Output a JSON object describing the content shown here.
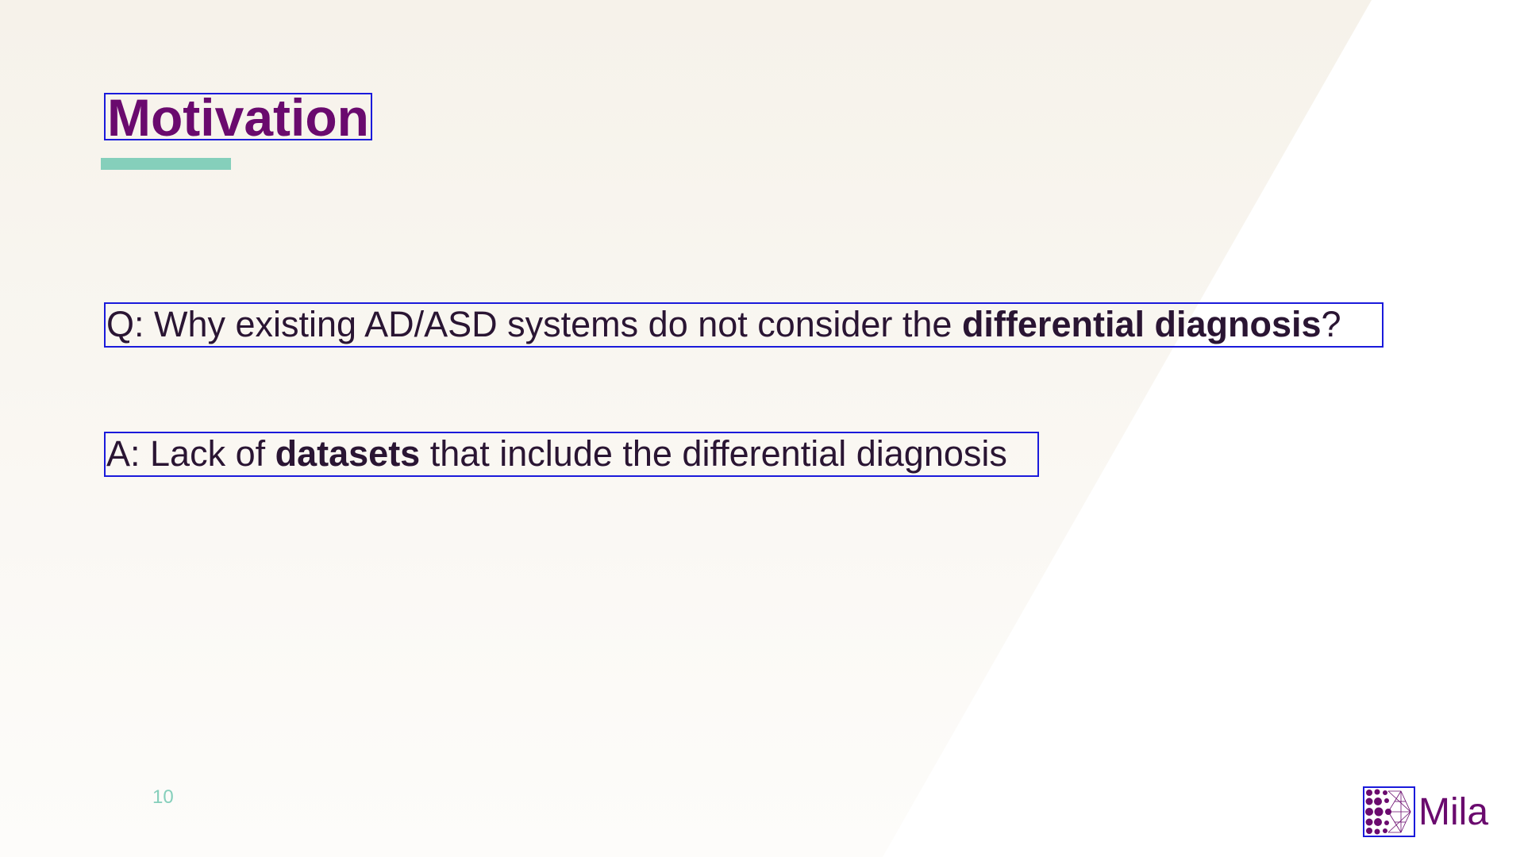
{
  "slide": {
    "title": "Motivation",
    "question": {
      "prefix": "Q: Why existing AD/ASD systems do not consider the ",
      "emphasis": "differential diagnosis",
      "suffix": "?"
    },
    "answer": {
      "prefix": "A: Lack of ",
      "emphasis": "datasets",
      "suffix": " that include the differential diagnosis"
    },
    "page_number": "10"
  },
  "logo": {
    "wordmark": "Mila",
    "icon": "mila-dots-logo-icon"
  },
  "colors": {
    "title": "#6a0a6e",
    "accent": "#85cfbb",
    "body_text": "#2a1533",
    "background_tint": "#f6f2ea",
    "box_outline": "#1a1adb"
  }
}
